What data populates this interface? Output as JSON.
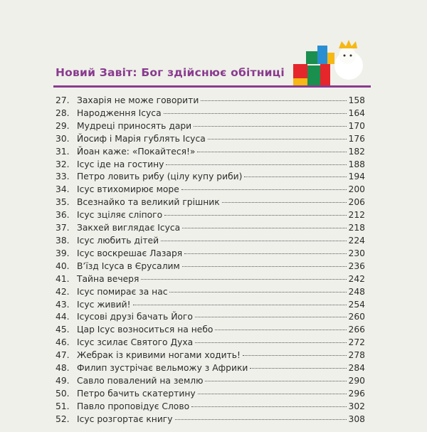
{
  "header": {
    "title": "Новий Завіт: Бог здійснює обітниці"
  },
  "entries": [
    {
      "number": "27.",
      "title": "Захарія не може говорити",
      "page": 158
    },
    {
      "number": "28.",
      "title": "Народження Ісуса",
      "page": 164
    },
    {
      "number": "29.",
      "title": "Мудреці приносять дари",
      "page": 170
    },
    {
      "number": "30.",
      "title": "Йосиф і Марія гублять Ісуса",
      "page": 176
    },
    {
      "number": "31.",
      "title": "Йоан каже: «Покайтеся!»",
      "page": 182
    },
    {
      "number": "32.",
      "title": "Ісус іде на гостину",
      "page": 188
    },
    {
      "number": "33.",
      "title": "Петро ловить рибу (цілу купу риби)",
      "page": 194
    },
    {
      "number": "34.",
      "title": "Ісус втихомирює море",
      "page": 200
    },
    {
      "number": "35.",
      "title": "Всезнайко та великий грішник",
      "page": 206
    },
    {
      "number": "36.",
      "title": "Ісус зціляє сліпого",
      "page": 212
    },
    {
      "number": "37.",
      "title": "Закхей виглядає Ісуса",
      "page": 218
    },
    {
      "number": "38.",
      "title": "Ісус любить дітей",
      "page": 224
    },
    {
      "number": "39.",
      "title": "Ісус воскрешає Лазаря",
      "page": 230
    },
    {
      "number": "40.",
      "title": "В’їзд Ісуса в Єрусалим",
      "page": 236
    },
    {
      "number": "41.",
      "title": "Тайна вечеря",
      "page": 242
    },
    {
      "number": "42.",
      "title": "Ісус помирає за нас",
      "page": 248
    },
    {
      "number": "43.",
      "title": "Ісус живий!",
      "page": 254
    },
    {
      "number": "44.",
      "title": "Ісусові друзі бачать Його",
      "page": 260
    },
    {
      "number": "45.",
      "title": "Цар Ісус возноситься на небо",
      "page": 266
    },
    {
      "number": "46.",
      "title": "Ісус зсилає Святого Духа",
      "page": 272
    },
    {
      "number": "47.",
      "title": "Жебрак із кривими ногами ходить!",
      "page": 278
    },
    {
      "number": "48.",
      "title": "Филип зустрічає вельможу з Африки",
      "page": 284
    },
    {
      "number": "49.",
      "title": "Савло повалений на землю",
      "page": 290
    },
    {
      "number": "50.",
      "title": "Петро бачить скатертину",
      "page": 296
    },
    {
      "number": "51.",
      "title": "Павло проповідує Слово",
      "page": 302
    },
    {
      "number": "52.",
      "title": "Ісус розгортає книгу",
      "page": 308
    }
  ]
}
